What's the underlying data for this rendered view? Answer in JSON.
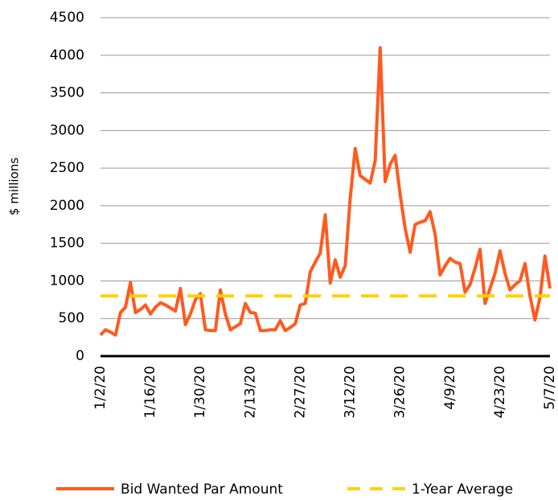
{
  "chart_data": {
    "type": "line",
    "y_label": "$ millions",
    "categories": [
      "1/2/20",
      null,
      null,
      null,
      null,
      null,
      null,
      null,
      null,
      null,
      "1/16/20",
      null,
      null,
      null,
      null,
      null,
      null,
      null,
      null,
      null,
      "1/30/20",
      null,
      null,
      null,
      null,
      null,
      null,
      null,
      null,
      null,
      "2/13/20",
      null,
      null,
      null,
      null,
      null,
      null,
      null,
      null,
      null,
      "2/27/20",
      null,
      null,
      null,
      null,
      null,
      null,
      null,
      null,
      null,
      "3/12/20",
      null,
      null,
      null,
      null,
      null,
      null,
      null,
      null,
      null,
      "3/26/20",
      null,
      null,
      null,
      null,
      null,
      null,
      null,
      null,
      null,
      "4/9/20",
      null,
      null,
      null,
      null,
      null,
      null,
      null,
      null,
      null,
      "4/23/20",
      null,
      null,
      null,
      null,
      null,
      null,
      null,
      null,
      null,
      "5/7/20"
    ],
    "series": [
      {
        "name": "Bid Wanted Par Amount",
        "color": "#ff5a1f",
        "dashed": false,
        "values": [
          280,
          350,
          320,
          280,
          580,
          650,
          980,
          580,
          620,
          680,
          560,
          650,
          710,
          680,
          640,
          600,
          900,
          420,
          560,
          750,
          830,
          350,
          340,
          340,
          880,
          560,
          350,
          390,
          430,
          700,
          580,
          570,
          340,
          340,
          350,
          350,
          470,
          340,
          380,
          430,
          680,
          700,
          1120,
          1250,
          1370,
          1880,
          970,
          1280,
          1050,
          1200,
          2100,
          2760,
          2400,
          2350,
          2300,
          2600,
          4100,
          2320,
          2550,
          2670,
          2150,
          1700,
          1380,
          1750,
          1780,
          1800,
          1920,
          1620,
          1080,
          1200,
          1300,
          1250,
          1230,
          850,
          950,
          1170,
          1420,
          700,
          900,
          1100,
          1400,
          1100,
          880,
          950,
          1000,
          1230,
          800,
          480,
          780,
          1330,
          900
        ]
      },
      {
        "name": "1-Year Average",
        "color": "#ffd200",
        "dashed": true,
        "values": [
          800,
          800,
          800,
          800,
          800,
          800,
          800,
          800,
          800,
          800,
          800,
          800,
          800,
          800,
          800,
          800,
          800,
          800,
          800,
          800,
          800,
          800,
          800,
          800,
          800,
          800,
          800,
          800,
          800,
          800,
          800,
          800,
          800,
          800,
          800,
          800,
          800,
          800,
          800,
          800,
          800,
          800,
          800,
          800,
          800,
          800,
          800,
          800,
          800,
          800,
          800,
          800,
          800,
          800,
          800,
          800,
          800,
          800,
          800,
          800,
          800,
          800,
          800,
          800,
          800,
          800,
          800,
          800,
          800,
          800,
          800,
          800,
          800,
          800,
          800,
          800,
          800,
          800,
          800,
          800,
          800,
          800,
          800,
          800,
          800,
          800,
          800,
          800,
          800,
          800,
          800
        ]
      }
    ],
    "ylim": [
      0,
      4500
    ],
    "yticks": [
      0,
      500,
      1000,
      1500,
      2000,
      2500,
      3000,
      3500,
      4000,
      4500
    ],
    "grid": true,
    "legend": "bottom"
  }
}
